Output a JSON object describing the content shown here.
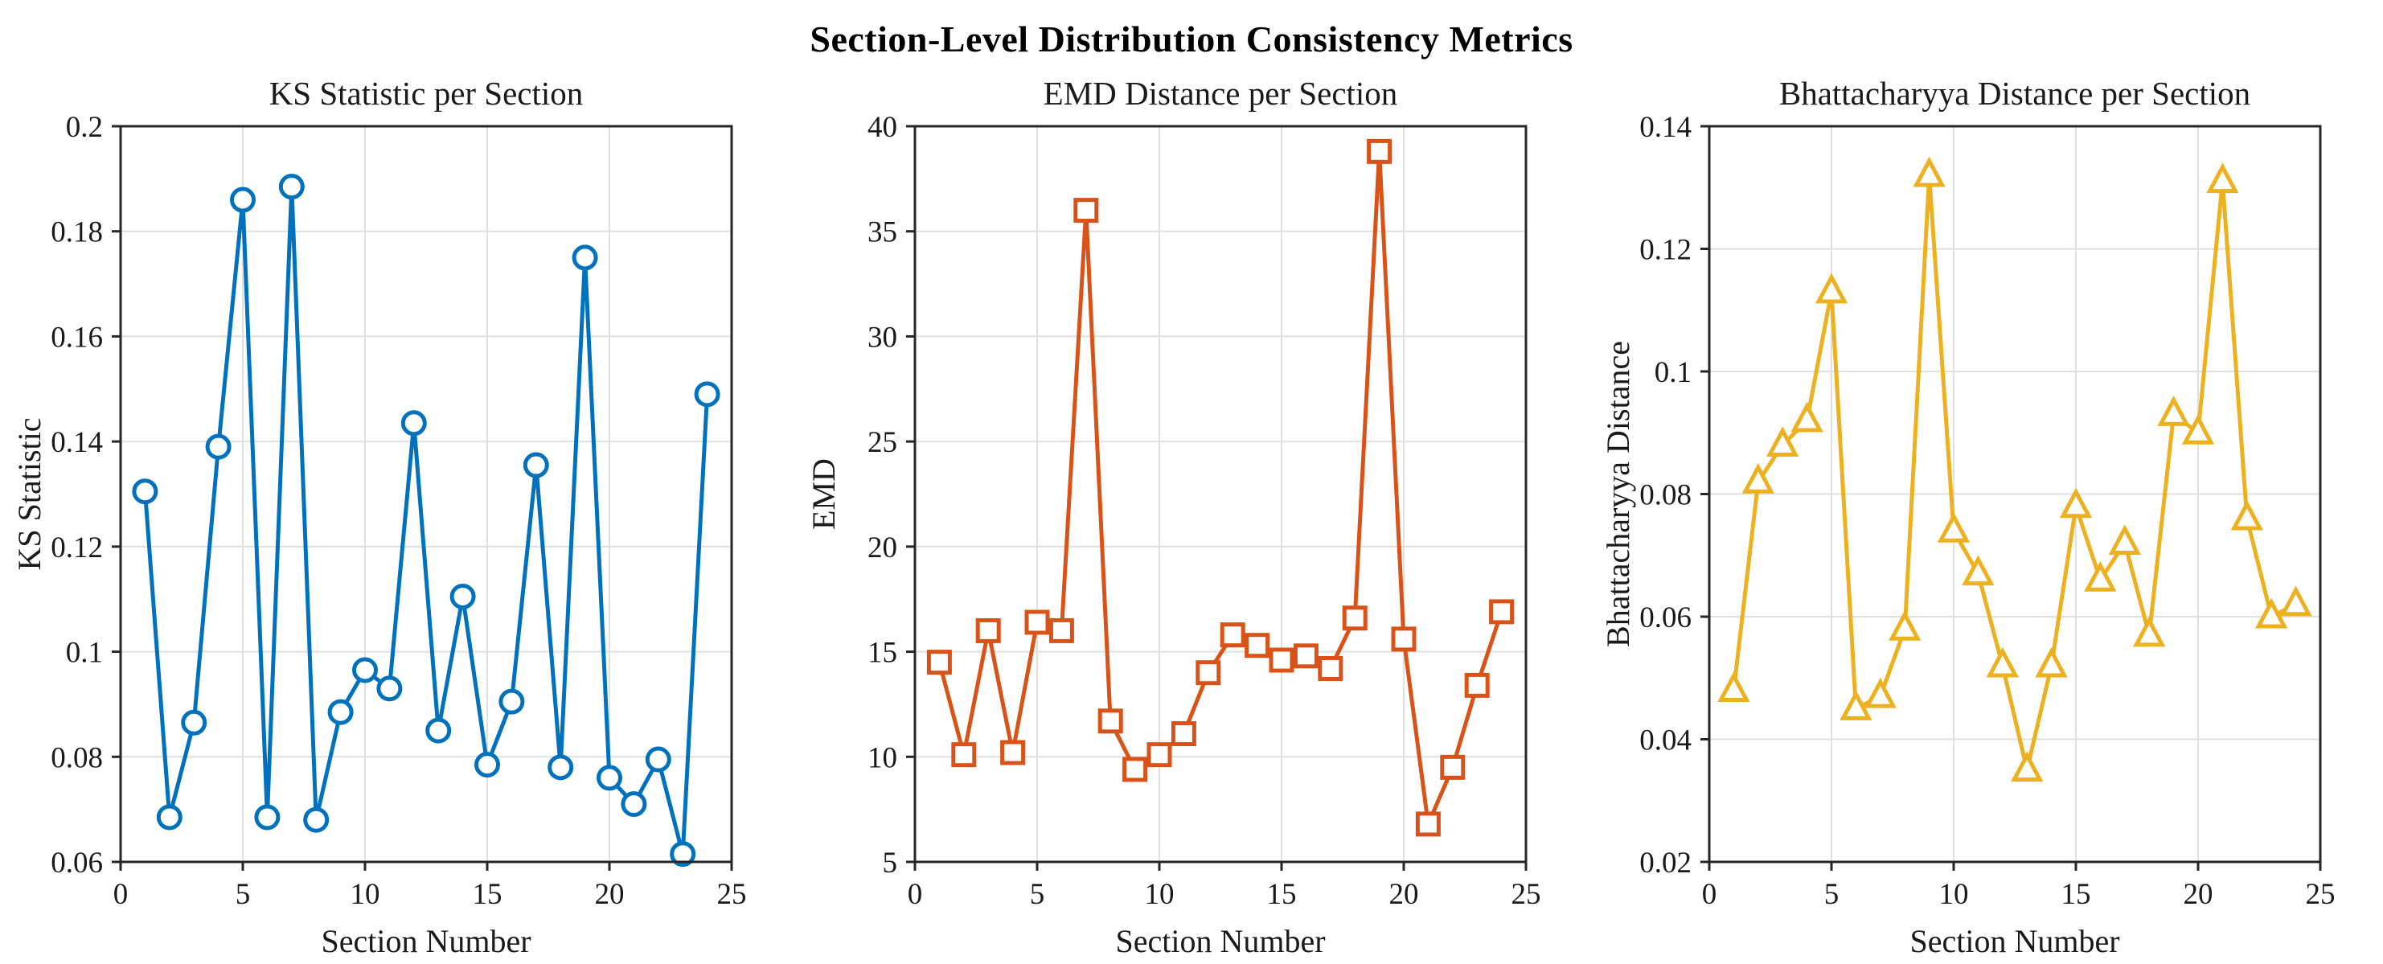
{
  "figure": {
    "suptitle": "Section-Level Distribution Consistency Metrics",
    "background_color": "#ffffff",
    "axis_color": "#262626",
    "grid_color": "#e0e0e0",
    "text_color": "#1a1a1a"
  },
  "chart_data": [
    {
      "id": "ks-statistic",
      "type": "line",
      "title": "KS Statistic per Section",
      "xlabel": "Section Number",
      "ylabel": "KS Statistic",
      "legend_position": "none",
      "grid": true,
      "marker": "circle",
      "color": "#0072BD",
      "xlim": [
        0,
        25
      ],
      "ylim": [
        0.06,
        0.2
      ],
      "xtick_labels": [
        "0",
        "5",
        "10",
        "15",
        "20",
        "25"
      ],
      "xtick_values": [
        0,
        5,
        10,
        15,
        20,
        25
      ],
      "ytick_labels": [
        "0.06",
        "0.08",
        "0.1",
        "0.12",
        "0.14",
        "0.16",
        "0.18",
        "0.2"
      ],
      "ytick_values": [
        0.06,
        0.08,
        0.1,
        0.12,
        0.14,
        0.16,
        0.18,
        0.2
      ],
      "x": [
        1,
        2,
        3,
        4,
        5,
        6,
        7,
        8,
        9,
        10,
        11,
        12,
        13,
        14,
        15,
        16,
        17,
        18,
        19,
        20,
        21,
        22,
        23,
        24
      ],
      "values": [
        0.1305,
        0.0685,
        0.0865,
        0.139,
        0.186,
        0.0685,
        0.1885,
        0.068,
        0.0885,
        0.0965,
        0.093,
        0.1435,
        0.085,
        0.1105,
        0.0785,
        0.0905,
        0.1355,
        0.078,
        0.175,
        0.076,
        0.071,
        0.0795,
        0.0615,
        0.149
      ]
    },
    {
      "id": "emd-distance",
      "type": "line",
      "title": "EMD Distance per Section",
      "xlabel": "Section Number",
      "ylabel": "EMD",
      "legend_position": "none",
      "grid": true,
      "marker": "square",
      "color": "#D95319",
      "xlim": [
        0,
        25
      ],
      "ylim": [
        5,
        40
      ],
      "xtick_labels": [
        "0",
        "5",
        "10",
        "15",
        "20",
        "25"
      ],
      "xtick_values": [
        0,
        5,
        10,
        15,
        20,
        25
      ],
      "ytick_labels": [
        "5",
        "10",
        "15",
        "20",
        "25",
        "30",
        "35",
        "40"
      ],
      "ytick_values": [
        5,
        10,
        15,
        20,
        25,
        30,
        35,
        40
      ],
      "x": [
        1,
        2,
        3,
        4,
        5,
        6,
        7,
        8,
        9,
        10,
        11,
        12,
        13,
        14,
        15,
        16,
        17,
        18,
        19,
        20,
        21,
        22,
        23,
        24
      ],
      "values": [
        14.5,
        10.1,
        16.0,
        10.2,
        16.4,
        16.0,
        36.0,
        11.7,
        9.4,
        10.1,
        11.1,
        14.0,
        15.8,
        15.3,
        14.6,
        14.8,
        14.2,
        16.6,
        38.8,
        15.6,
        6.8,
        9.5,
        13.4,
        16.9
      ]
    },
    {
      "id": "bhattacharyya-distance",
      "type": "line",
      "title": "Bhattacharyya Distance per Section",
      "xlabel": "Section Number",
      "ylabel": "Bhattacharyya Distance",
      "legend_position": "none",
      "grid": true,
      "marker": "triangle-up",
      "color": "#EDB120",
      "xlim": [
        0,
        25
      ],
      "ylim": [
        0.02,
        0.14
      ],
      "xtick_labels": [
        "0",
        "5",
        "10",
        "15",
        "20",
        "25"
      ],
      "xtick_values": [
        0,
        5,
        10,
        15,
        20,
        25
      ],
      "ytick_labels": [
        "0.02",
        "0.04",
        "0.06",
        "0.08",
        "0.1",
        "0.12",
        "0.14"
      ],
      "ytick_values": [
        0.02,
        0.04,
        0.06,
        0.08,
        0.1,
        0.12,
        0.14
      ],
      "x": [
        1,
        2,
        3,
        4,
        5,
        6,
        7,
        8,
        9,
        10,
        11,
        12,
        13,
        14,
        15,
        16,
        17,
        18,
        19,
        20,
        21,
        22,
        23,
        24
      ],
      "values": [
        0.048,
        0.082,
        0.088,
        0.092,
        0.113,
        0.045,
        0.047,
        0.058,
        0.132,
        0.074,
        0.067,
        0.052,
        0.035,
        0.052,
        0.078,
        0.066,
        0.072,
        0.057,
        0.093,
        0.09,
        0.131,
        0.076,
        0.06,
        0.062
      ]
    }
  ]
}
